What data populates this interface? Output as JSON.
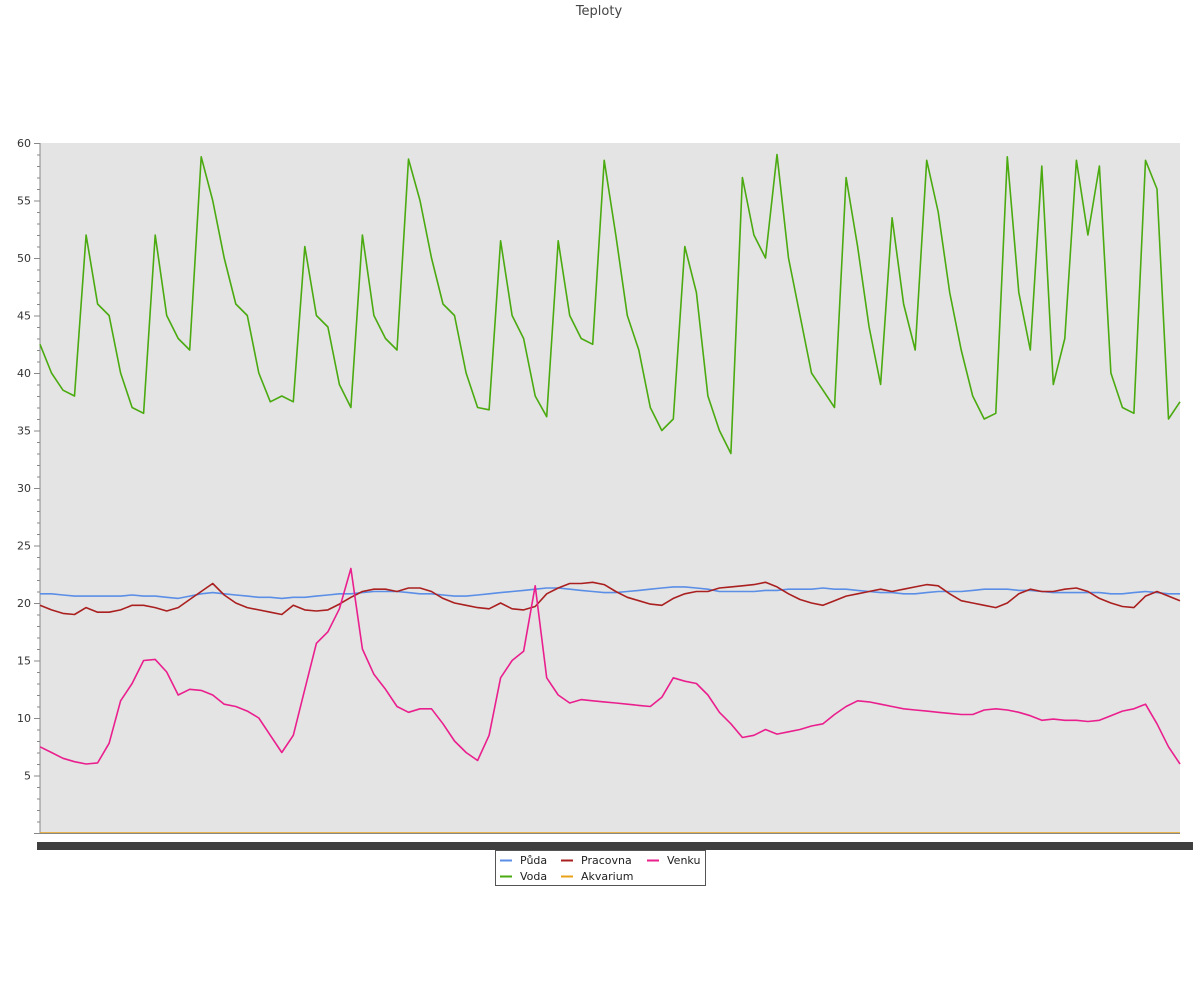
{
  "chart_data": {
    "type": "line",
    "title": "Teploty",
    "xlabel": "",
    "ylabel": "",
    "ylim": [
      0,
      60
    ],
    "y_ticks": [
      5,
      10,
      15,
      20,
      25,
      30,
      35,
      40,
      45,
      50,
      55,
      60
    ],
    "x_points": 100,
    "grid": false,
    "legend_position": "bottom-center",
    "plot_background": "#e4e4e4",
    "series": [
      {
        "name": "Půda",
        "color": "#5b8ee6",
        "values": [
          20.8,
          20.8,
          20.7,
          20.6,
          20.6,
          20.6,
          20.6,
          20.6,
          20.7,
          20.6,
          20.6,
          20.5,
          20.4,
          20.6,
          20.8,
          20.9,
          20.8,
          20.7,
          20.6,
          20.5,
          20.5,
          20.4,
          20.5,
          20.5,
          20.6,
          20.7,
          20.8,
          20.8,
          20.9,
          21.0,
          21.0,
          21.0,
          20.9,
          20.8,
          20.8,
          20.7,
          20.6,
          20.6,
          20.7,
          20.8,
          20.9,
          21.0,
          21.1,
          21.2,
          21.3,
          21.3,
          21.2,
          21.1,
          21.0,
          20.9,
          20.9,
          21.0,
          21.1,
          21.2,
          21.3,
          21.4,
          21.4,
          21.3,
          21.2,
          21.0,
          21.0,
          21.0,
          21.0,
          21.1,
          21.1,
          21.2,
          21.2,
          21.2,
          21.3,
          21.2,
          21.2,
          21.1,
          21.0,
          20.9,
          20.9,
          20.8,
          20.8,
          20.9,
          21.0,
          21.0,
          21.0,
          21.1,
          21.2,
          21.2,
          21.2,
          21.1,
          21.1,
          21.0,
          20.9,
          20.9,
          20.9,
          20.9,
          20.9,
          20.8,
          20.8,
          20.9,
          21.0,
          20.9,
          20.8,
          20.8
        ]
      },
      {
        "name": "Pracovna",
        "color": "#aa1f1f",
        "values": [
          19.8,
          19.4,
          19.1,
          19.0,
          19.6,
          19.2,
          19.2,
          19.4,
          19.8,
          19.8,
          19.6,
          19.3,
          19.6,
          20.3,
          21.0,
          21.7,
          20.7,
          20.0,
          19.6,
          19.4,
          19.2,
          19.0,
          19.8,
          19.4,
          19.3,
          19.4,
          19.9,
          20.5,
          21.0,
          21.2,
          21.2,
          21.0,
          21.3,
          21.3,
          21.0,
          20.4,
          20.0,
          19.8,
          19.6,
          19.5,
          20.0,
          19.5,
          19.4,
          19.7,
          20.8,
          21.3,
          21.7,
          21.7,
          21.8,
          21.6,
          21.0,
          20.5,
          20.2,
          19.9,
          19.8,
          20.4,
          20.8,
          21.0,
          21.0,
          21.3,
          21.4,
          21.5,
          21.6,
          21.8,
          21.4,
          20.8,
          20.3,
          20.0,
          19.8,
          20.2,
          20.6,
          20.8,
          21.0,
          21.2,
          21.0,
          21.2,
          21.4,
          21.6,
          21.5,
          20.8,
          20.2,
          20.0,
          19.8,
          19.6,
          20.0,
          20.8,
          21.2,
          21.0,
          21.0,
          21.2,
          21.3,
          21.0,
          20.4,
          20.0,
          19.7,
          19.6,
          20.6,
          21.0,
          20.6,
          20.2
        ]
      },
      {
        "name": "Venku",
        "color": "#ea1f8e",
        "values": [
          7.5,
          7.0,
          6.5,
          6.2,
          6.0,
          6.1,
          7.8,
          11.5,
          13.0,
          15.0,
          15.1,
          14.0,
          12.0,
          12.5,
          12.4,
          12.0,
          11.2,
          11.0,
          10.6,
          10.0,
          8.5,
          7.0,
          8.5,
          12.5,
          16.5,
          17.5,
          19.5,
          23.0,
          16.0,
          13.8,
          12.5,
          11.0,
          10.5,
          10.8,
          10.8,
          9.5,
          8.0,
          7.0,
          6.3,
          8.5,
          13.5,
          15.0,
          15.8,
          21.5,
          13.5,
          12.0,
          11.3,
          11.6,
          11.5,
          11.4,
          11.3,
          11.2,
          11.1,
          11.0,
          11.8,
          13.5,
          13.2,
          13.0,
          12.0,
          10.5,
          9.5,
          8.3,
          8.5,
          9.0,
          8.6,
          8.8,
          9.0,
          9.3,
          9.5,
          10.3,
          11.0,
          11.5,
          11.4,
          11.2,
          11.0,
          10.8,
          10.7,
          10.6,
          10.5,
          10.4,
          10.3,
          10.3,
          10.7,
          10.8,
          10.7,
          10.5,
          10.2,
          9.8,
          9.9,
          9.8,
          9.8,
          9.7,
          9.8,
          10.2,
          10.6,
          10.8,
          11.2,
          9.5,
          7.5,
          6.0
        ]
      },
      {
        "name": "Voda",
        "color": "#4aaa10",
        "values": [
          42.5,
          40.0,
          38.5,
          38.0,
          52.0,
          46.0,
          45.0,
          40.0,
          37.0,
          36.5,
          52.0,
          45.0,
          43.0,
          42.0,
          58.8,
          55.0,
          50.0,
          46.0,
          45.0,
          40.0,
          37.5,
          38.0,
          37.5,
          51.0,
          45.0,
          44.0,
          39.0,
          37.0,
          52.0,
          45.0,
          43.0,
          42.0,
          58.6,
          55.0,
          50.0,
          46.0,
          45.0,
          40.0,
          37.0,
          36.8,
          51.5,
          45.0,
          43.0,
          38.0,
          36.2,
          51.5,
          45.0,
          43.0,
          42.5,
          58.5,
          52.0,
          45.0,
          42.0,
          37.0,
          35.0,
          36.0,
          51.0,
          47.0,
          38.0,
          35.0,
          33.0,
          57.0,
          52.0,
          50.0,
          59.0,
          50.0,
          45.0,
          40.0,
          38.5,
          37.0,
          57.0,
          51.0,
          44.0,
          39.0,
          53.5,
          46.0,
          42.0,
          58.5,
          54.0,
          47.0,
          42.0,
          38.0,
          36.0,
          36.5,
          58.8,
          47.0,
          42.0,
          58.0,
          39.0,
          43.0,
          58.5,
          52.0,
          58.0,
          40.0,
          37.0,
          36.5,
          58.5,
          56.0,
          36.0,
          37.5
        ]
      },
      {
        "name": "Akvarium",
        "color": "#e8a21a",
        "values": [
          0,
          0,
          0,
          0,
          0,
          0,
          0,
          0,
          0,
          0,
          0,
          0,
          0,
          0,
          0,
          0,
          0,
          0,
          0,
          0,
          0,
          0,
          0,
          0,
          0,
          0,
          0,
          0,
          0,
          0,
          0,
          0,
          0,
          0,
          0,
          0,
          0,
          0,
          0,
          0,
          0,
          0,
          0,
          0,
          0,
          0,
          0,
          0,
          0,
          0,
          0,
          0,
          0,
          0,
          0,
          0,
          0,
          0,
          0,
          0,
          0,
          0,
          0,
          0,
          0,
          0,
          0,
          0,
          0,
          0,
          0,
          0,
          0,
          0,
          0,
          0,
          0,
          0,
          0,
          0,
          0,
          0,
          0,
          0,
          0,
          0,
          0,
          0,
          0,
          0,
          0,
          0,
          0,
          0,
          0,
          0,
          0,
          0,
          0,
          0
        ]
      }
    ]
  }
}
